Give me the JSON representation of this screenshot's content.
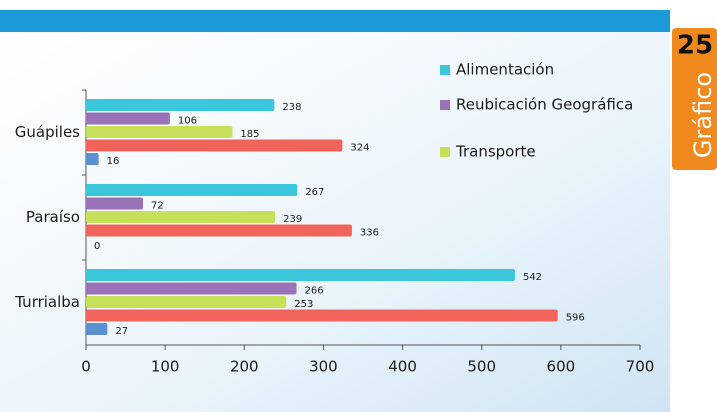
{
  "chart_data": {
    "type": "barh",
    "annotations": [
      "25",
      "Gráfico"
    ],
    "categories": [
      "Guápiles",
      "Paraíso",
      "Turrialba"
    ],
    "series": [
      {
        "name": "Alimentación",
        "color": "#3cc6dc",
        "values": [
          238,
          267,
          542
        ]
      },
      {
        "name": "Reubicación Geográfica",
        "color": "#9a72b8",
        "values": [
          106,
          72,
          266
        ]
      },
      {
        "name": "Transporte",
        "color": "#c6e05a",
        "values": [
          185,
          239,
          253
        ]
      },
      {
        "color": "#f0645c",
        "values": [
          324,
          336,
          596
        ]
      },
      {
        "color": "#5a90d0",
        "values": [
          16,
          0,
          27
        ]
      }
    ],
    "xlim": [
      0,
      700
    ],
    "xticks": [
      0,
      100,
      200,
      300,
      400,
      500,
      600,
      700
    ],
    "grid": false,
    "legend": "top-right"
  }
}
